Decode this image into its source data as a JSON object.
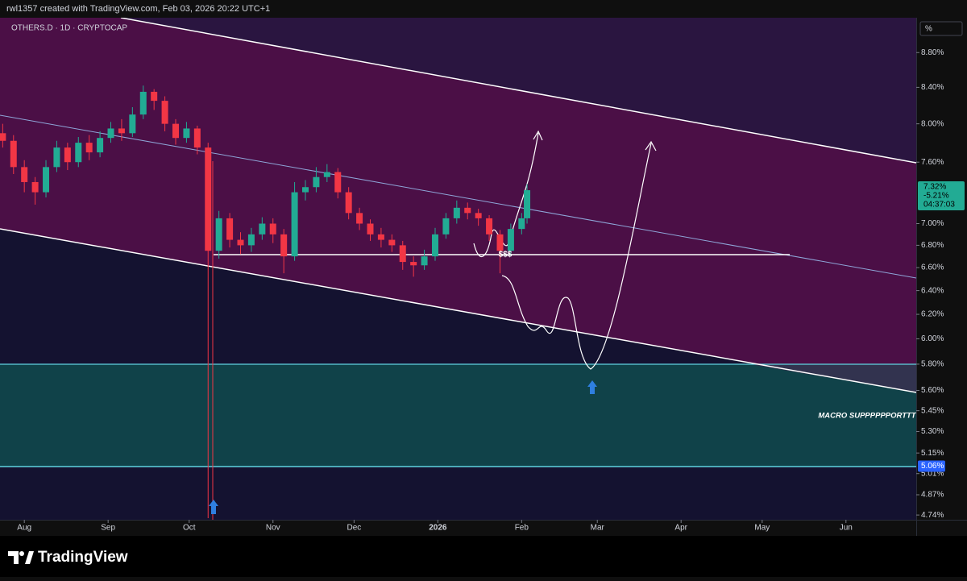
{
  "header": {
    "author_line": "rwl1357 created with TradingView.com, Feb 03, 2026 20:22 UTC+1"
  },
  "chart_data": {
    "type": "candlestick",
    "symbol": "OTHERS.D · 1D · CRYPTOCAP",
    "unit": "%",
    "x": [
      "2025-07-24",
      "2025-07-28",
      "2025-08-01",
      "2025-08-05",
      "2025-08-09",
      "2025-08-13",
      "2025-08-17",
      "2025-08-21",
      "2025-08-25",
      "2025-08-29",
      "2025-09-02",
      "2025-09-06",
      "2025-09-10",
      "2025-09-14",
      "2025-09-18",
      "2025-09-22",
      "2025-09-26",
      "2025-09-30",
      "2025-10-04",
      "2025-10-08",
      "2025-10-12",
      "2025-10-16",
      "2025-10-20",
      "2025-10-24",
      "2025-10-28",
      "2025-11-01",
      "2025-11-05",
      "2025-11-09",
      "2025-11-13",
      "2025-11-17",
      "2025-11-21",
      "2025-11-25",
      "2025-11-29",
      "2025-12-03",
      "2025-12-07",
      "2025-12-11",
      "2025-12-15",
      "2025-12-19",
      "2025-12-23",
      "2025-12-27",
      "2025-12-31",
      "2026-01-04",
      "2026-01-08",
      "2026-01-12",
      "2026-01-16",
      "2026-01-20",
      "2026-01-24",
      "2026-01-28",
      "2026-02-01",
      "2026-02-03"
    ],
    "open": [
      7.9,
      7.82,
      7.55,
      7.4,
      7.3,
      7.55,
      7.75,
      7.6,
      7.8,
      7.7,
      7.85,
      7.95,
      7.9,
      8.1,
      8.35,
      8.25,
      8.0,
      7.85,
      7.95,
      7.75,
      6.75,
      7.05,
      6.85,
      6.8,
      6.9,
      7.0,
      6.9,
      6.7,
      7.3,
      7.35,
      7.45,
      7.5,
      7.3,
      7.1,
      7.0,
      6.9,
      6.85,
      6.8,
      6.65,
      6.62,
      6.7,
      6.9,
      7.05,
      7.15,
      7.1,
      7.05,
      6.9,
      6.75,
      6.95,
      7.05
    ],
    "high": [
      8.0,
      7.88,
      7.62,
      7.45,
      7.62,
      7.82,
      7.8,
      7.86,
      7.88,
      7.92,
      8.02,
      8.05,
      8.18,
      8.42,
      8.38,
      8.3,
      8.05,
      8.02,
      7.98,
      7.8,
      7.12,
      7.1,
      6.92,
      6.96,
      7.06,
      7.05,
      6.95,
      7.4,
      7.42,
      7.55,
      7.58,
      7.54,
      7.35,
      7.15,
      7.04,
      6.96,
      6.9,
      6.84,
      6.7,
      6.76,
      6.96,
      7.1,
      7.22,
      7.2,
      7.14,
      7.08,
      6.94,
      7.0,
      7.1,
      7.38
    ],
    "low": [
      7.75,
      7.48,
      7.3,
      7.18,
      7.25,
      7.5,
      7.52,
      7.55,
      7.62,
      7.65,
      7.8,
      7.82,
      7.86,
      8.05,
      8.15,
      7.92,
      7.78,
      7.8,
      7.68,
      4.72,
      6.68,
      6.78,
      6.72,
      6.74,
      6.85,
      6.82,
      6.55,
      6.66,
      7.22,
      7.3,
      7.4,
      7.24,
      7.04,
      6.94,
      6.84,
      6.78,
      6.74,
      6.58,
      6.52,
      6.58,
      6.66,
      6.86,
      7.0,
      7.04,
      6.98,
      6.84,
      6.55,
      6.7,
      6.9,
      7.0
    ],
    "close": [
      7.82,
      7.55,
      7.4,
      7.3,
      7.55,
      7.75,
      7.6,
      7.8,
      7.7,
      7.85,
      7.95,
      7.9,
      8.1,
      8.35,
      8.25,
      8.0,
      7.85,
      7.95,
      7.75,
      6.75,
      7.05,
      6.85,
      6.8,
      6.9,
      7.0,
      6.9,
      6.7,
      7.3,
      7.35,
      7.45,
      7.5,
      7.3,
      7.1,
      7.0,
      6.9,
      6.85,
      6.8,
      6.65,
      6.62,
      6.7,
      6.9,
      7.05,
      7.15,
      7.1,
      7.05,
      6.9,
      6.75,
      6.95,
      7.05,
      7.32
    ],
    "up_color": "#22ab94",
    "down_color": "#f23645",
    "xlim": [
      "2025-07-23",
      "2026-06-27"
    ],
    "xticks": [
      {
        "value": "2025-08-01",
        "label": "Aug"
      },
      {
        "value": "2025-09-01",
        "label": "Sep"
      },
      {
        "value": "2025-10-01",
        "label": "Oct"
      },
      {
        "value": "2025-11-01",
        "label": "Nov"
      },
      {
        "value": "2025-12-01",
        "label": "Dec"
      },
      {
        "value": "2026-01-01",
        "label": "2026"
      },
      {
        "value": "2026-02-01",
        "label": "Feb"
      },
      {
        "value": "2026-03-01",
        "label": "Mar"
      },
      {
        "value": "2026-04-01",
        "label": "Apr"
      },
      {
        "value": "2026-05-01",
        "label": "May"
      },
      {
        "value": "2026-06-01",
        "label": "Jun"
      }
    ],
    "ylim": [
      4.71,
      9.22
    ],
    "log": true,
    "yticks": [
      {
        "value": 8.8,
        "label": "8.80%"
      },
      {
        "value": 8.4,
        "label": "8.40%"
      },
      {
        "value": 8.0,
        "label": "8.00%"
      },
      {
        "value": 7.6,
        "label": "7.60%"
      },
      {
        "value": 7.0,
        "label": "7.00%"
      },
      {
        "value": 6.8,
        "label": "6.80%"
      },
      {
        "value": 6.6,
        "label": "6.60%"
      },
      {
        "value": 6.4,
        "label": "6.40%"
      },
      {
        "value": 6.2,
        "label": "6.20%"
      },
      {
        "value": 6.0,
        "label": "6.00%"
      },
      {
        "value": 5.8,
        "label": "5.80%"
      },
      {
        "value": 5.6,
        "label": "5.60%"
      },
      {
        "value": 5.45,
        "label": "5.45%"
      },
      {
        "value": 5.3,
        "label": "5.30%"
      },
      {
        "value": 5.15,
        "label": "5.15%"
      },
      {
        "value": 5.01,
        "label": "5.01%"
      },
      {
        "value": 4.87,
        "label": "4.87%"
      },
      {
        "value": 4.74,
        "label": "4.74%"
      }
    ],
    "last_price": {
      "value": 7.32,
      "label": "7.32%"
    },
    "last_change": "-5.21%",
    "countdown": "04:37:03",
    "price_marker": {
      "value": 5.06,
      "label": "5.06%"
    },
    "annotations": [
      "$$$",
      "MACRO SUPPPPPPORTTT"
    ]
  },
  "footer": {
    "brand": "TradingView"
  }
}
